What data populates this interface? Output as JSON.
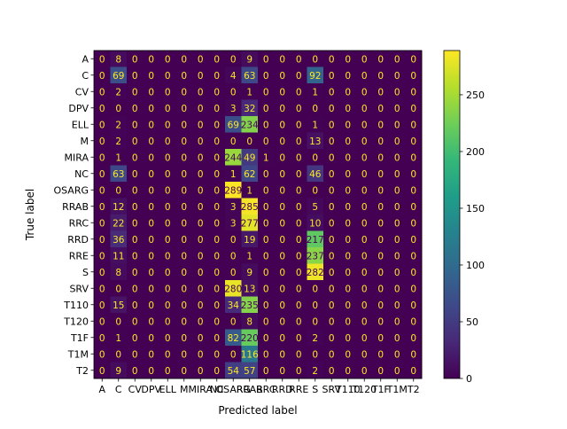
{
  "chart_data": {
    "type": "heatmap",
    "title": "",
    "xlabel": "Predicted label",
    "ylabel": "True label",
    "x_categories": [
      "A",
      "C",
      "CV",
      "DPV",
      "ELL",
      "M",
      "MIRA",
      "NC",
      "OSARG",
      "RRAB",
      "RRC",
      "RRD",
      "RRE",
      "S",
      "SRV",
      "T110",
      "T120",
      "T1F",
      "T1M",
      "T2"
    ],
    "y_categories": [
      "A",
      "C",
      "CV",
      "DPV",
      "ELL",
      "M",
      "MIRA",
      "NC",
      "OSARG",
      "RRAB",
      "RRC",
      "RRD",
      "RRE",
      "S",
      "SRV",
      "T110",
      "T120",
      "T1F",
      "T1M",
      "T2"
    ],
    "matrix": [
      [
        0,
        8,
        0,
        0,
        0,
        0,
        0,
        0,
        0,
        9,
        0,
        0,
        0,
        0,
        0,
        0,
        0,
        0,
        0,
        0
      ],
      [
        0,
        69,
        0,
        0,
        0,
        0,
        0,
        0,
        4,
        63,
        0,
        0,
        0,
        92,
        0,
        0,
        0,
        0,
        0,
        0
      ],
      [
        0,
        2,
        0,
        0,
        0,
        0,
        0,
        0,
        0,
        1,
        0,
        0,
        0,
        1,
        0,
        0,
        0,
        0,
        0,
        0
      ],
      [
        0,
        0,
        0,
        0,
        0,
        0,
        0,
        0,
        3,
        32,
        0,
        0,
        0,
        0,
        0,
        0,
        0,
        0,
        0,
        0
      ],
      [
        0,
        2,
        0,
        0,
        0,
        0,
        0,
        0,
        69,
        234,
        0,
        0,
        0,
        1,
        0,
        0,
        0,
        0,
        0,
        0
      ],
      [
        0,
        2,
        0,
        0,
        0,
        0,
        0,
        0,
        0,
        0,
        0,
        0,
        0,
        13,
        0,
        0,
        0,
        0,
        0,
        0
      ],
      [
        0,
        1,
        0,
        0,
        0,
        0,
        0,
        0,
        244,
        49,
        1,
        0,
        0,
        0,
        0,
        0,
        0,
        0,
        0,
        0
      ],
      [
        0,
        63,
        0,
        0,
        0,
        0,
        0,
        0,
        1,
        62,
        0,
        0,
        0,
        46,
        0,
        0,
        0,
        0,
        0,
        0
      ],
      [
        0,
        0,
        0,
        0,
        0,
        0,
        0,
        0,
        289,
        1,
        0,
        0,
        0,
        0,
        0,
        0,
        0,
        0,
        0,
        0
      ],
      [
        0,
        12,
        0,
        0,
        0,
        0,
        0,
        0,
        3,
        285,
        0,
        0,
        0,
        5,
        0,
        0,
        0,
        0,
        0,
        0
      ],
      [
        0,
        22,
        0,
        0,
        0,
        0,
        0,
        0,
        3,
        277,
        0,
        0,
        0,
        10,
        0,
        0,
        0,
        0,
        0,
        0
      ],
      [
        0,
        36,
        0,
        0,
        0,
        0,
        0,
        0,
        0,
        19,
        0,
        0,
        0,
        217,
        0,
        0,
        0,
        0,
        0,
        0
      ],
      [
        0,
        11,
        0,
        0,
        0,
        0,
        0,
        0,
        0,
        1,
        0,
        0,
        0,
        237,
        0,
        0,
        0,
        0,
        0,
        0
      ],
      [
        0,
        8,
        0,
        0,
        0,
        0,
        0,
        0,
        0,
        9,
        0,
        0,
        0,
        282,
        0,
        0,
        0,
        0,
        0,
        0
      ],
      [
        0,
        0,
        0,
        0,
        0,
        0,
        0,
        0,
        280,
        13,
        0,
        0,
        0,
        0,
        0,
        0,
        0,
        0,
        0,
        0
      ],
      [
        0,
        15,
        0,
        0,
        0,
        0,
        0,
        0,
        34,
        235,
        0,
        0,
        0,
        0,
        0,
        0,
        0,
        0,
        0,
        0
      ],
      [
        0,
        0,
        0,
        0,
        0,
        0,
        0,
        0,
        0,
        8,
        0,
        0,
        0,
        0,
        0,
        0,
        0,
        0,
        0,
        0
      ],
      [
        0,
        1,
        0,
        0,
        0,
        0,
        0,
        0,
        82,
        220,
        0,
        0,
        0,
        2,
        0,
        0,
        0,
        0,
        0,
        0
      ],
      [
        0,
        0,
        0,
        0,
        0,
        0,
        0,
        0,
        0,
        116,
        0,
        0,
        0,
        0,
        0,
        0,
        0,
        0,
        0,
        0
      ],
      [
        0,
        9,
        0,
        0,
        0,
        0,
        0,
        0,
        54,
        57,
        0,
        0,
        0,
        2,
        0,
        0,
        0,
        0,
        0,
        0
      ]
    ],
    "vmin": 0,
    "vmax": 289,
    "colormap": "viridis",
    "colorbar_ticks": [
      0,
      50,
      100,
      150,
      200,
      250
    ],
    "text_color_low": "#fde725",
    "text_color_high": "#440154",
    "grid": false
  }
}
